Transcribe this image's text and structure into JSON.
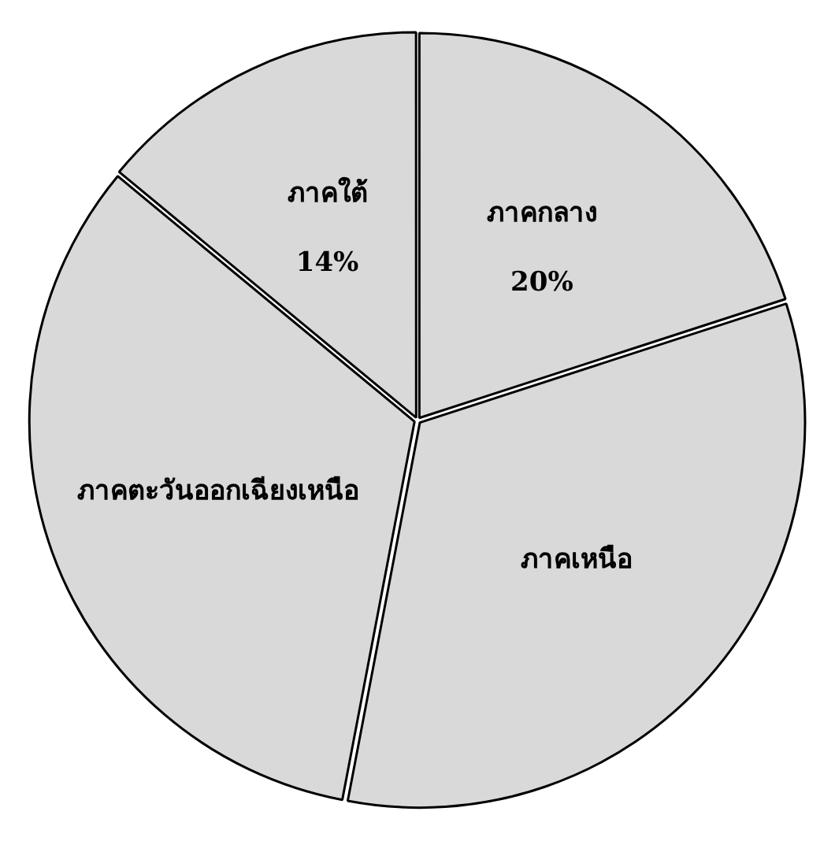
{
  "chart_data": {
    "type": "pie",
    "categories": [
      "ภาคกลาง",
      "ภาคเหนือ",
      "ภาคตะวันออกเฉียงเหนือ",
      "ภาคใต้"
    ],
    "values": [
      20,
      33,
      33,
      14
    ],
    "colors": [
      "#d9d9d9",
      "#d9d9d9",
      "#d9d9d9",
      "#d9d9d9"
    ],
    "value_labels": [
      "20%",
      null,
      null,
      "14%"
    ],
    "legend": false
  }
}
